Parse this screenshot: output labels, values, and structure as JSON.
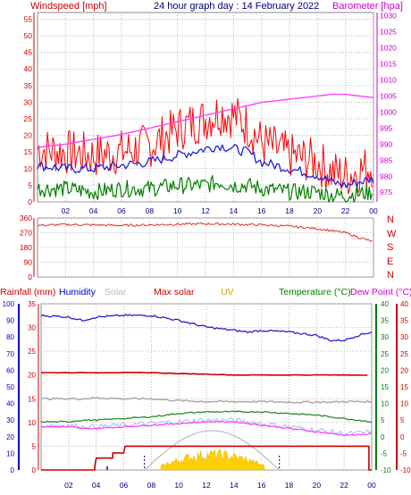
{
  "header": {
    "left_label": "Windspeed [mph]",
    "title": "24 hour graph day : 14 February 2022",
    "right_label": "Barometer [hpa]"
  },
  "wind_dir_labels": [
    "N",
    "W",
    "S",
    "E",
    "N"
  ],
  "bottom_header": {
    "rainfall": "Rainfall (mm)",
    "humidity": "Humidity",
    "solar": "Solar",
    "max_solar": "Max solar",
    "uv": "UV",
    "temperature": "Temperature (°C)",
    "dewpoint": "Dew Point (°C)"
  },
  "colors": {
    "wind_gust": "#ff0000",
    "wind_avg": "#2020e0",
    "wind_low": "#008000",
    "barometer": "#ff40ff",
    "wind_dir": "#e03030",
    "rainfall": "#cc0000",
    "humidity": "#2020d0",
    "solar": "#aaaaaa",
    "max_solar": "#cc0000",
    "uv": "#ffd000",
    "temperature": "#2a8a2a",
    "dewpoint": "#ff40ff",
    "grid": "#bbbbbb"
  },
  "chart_data": [
    {
      "type": "line",
      "x": [
        0,
        2,
        4,
        6,
        8,
        10,
        12,
        13,
        14,
        15,
        16,
        18,
        20,
        21,
        22,
        24
      ],
      "xticks": [
        "02",
        "04",
        "06",
        "08",
        "10",
        "12",
        "14",
        "16",
        "18",
        "20",
        "22",
        "00"
      ],
      "ylim": [
        0,
        57
      ],
      "yticks": [
        0,
        5,
        10,
        15,
        20,
        25,
        30,
        35,
        40,
        45,
        50,
        55
      ],
      "y2lim": [
        972,
        1031
      ],
      "y2ticks": [
        975,
        980,
        985,
        990,
        995,
        1000,
        1005,
        1010,
        1015,
        1020,
        1025,
        1030
      ],
      "series": [
        {
          "key": "wind_gust",
          "values": [
            16,
            15,
            14,
            15,
            17,
            22,
            25,
            27,
            26,
            23,
            18,
            14,
            12,
            9,
            8,
            11
          ]
        },
        {
          "key": "wind_avg",
          "values": [
            11,
            10,
            10,
            11,
            12,
            14,
            16,
            17,
            16,
            15,
            12,
            10,
            8,
            6,
            5,
            7
          ]
        },
        {
          "key": "wind_low",
          "values": [
            4,
            4,
            3,
            4,
            4,
            5,
            5,
            6,
            5,
            5,
            4,
            3,
            3,
            2,
            2,
            3
          ]
        },
        {
          "key": "barometer",
          "axis": "y2",
          "values": [
            989,
            990,
            991.5,
            993,
            995,
            997,
            999,
            1000,
            1001,
            1002,
            1003,
            1004,
            1005,
            1005.5,
            1005.5,
            1004.5
          ]
        }
      ]
    },
    {
      "type": "line",
      "x": [
        0,
        2,
        4,
        6,
        8,
        10,
        12,
        14,
        16,
        18,
        20,
        22,
        23,
        24
      ],
      "ylim": [
        0,
        360
      ],
      "yticks": [
        0,
        90,
        180,
        270,
        360
      ],
      "series": [
        {
          "key": "wind_dir",
          "values": [
            315,
            320,
            318,
            315,
            318,
            322,
            325,
            322,
            318,
            310,
            295,
            270,
            240,
            215
          ]
        }
      ]
    },
    {
      "type": "line",
      "x": [
        0,
        2,
        3,
        4,
        6,
        8,
        10,
        12,
        14,
        15,
        16,
        18,
        20,
        21,
        22,
        23,
        24
      ],
      "axes": {
        "rain": {
          "lim": [
            0,
            35
          ],
          "ticks": [
            0,
            5,
            10,
            15,
            20,
            25,
            30,
            35
          ]
        },
        "humidity": {
          "lim": [
            0,
            100
          ],
          "ticks": [
            0,
            10,
            20,
            30,
            40,
            50,
            60,
            70,
            80,
            90,
            100
          ]
        },
        "temp": {
          "lim": [
            -10,
            40
          ],
          "ticks": [
            -10,
            -5,
            0,
            5,
            10,
            15,
            20,
            25,
            30,
            35,
            40
          ]
        }
      },
      "series": [
        {
          "key": "humidity",
          "axis": "humidity",
          "values": [
            93,
            92,
            90,
            92,
            93,
            93,
            90,
            86,
            84,
            83,
            84,
            83,
            81,
            78,
            78,
            81,
            83
          ]
        },
        {
          "key": "max_solar",
          "axis": "rain",
          "values": [
            20.5,
            20.5,
            20.5,
            20.5,
            20.5,
            20.5,
            20.3,
            20.2,
            20.0,
            20.0,
            20.0,
            20.0,
            20.0,
            20.0,
            20.0,
            20.0,
            20.0
          ]
        },
        {
          "key": "solar",
          "axis": "rain",
          "values": [
            15,
            15,
            15,
            15.2,
            15,
            15,
            14.6,
            14.4,
            14.4,
            14.4,
            14.4,
            14.3,
            14.3,
            14.3,
            14.4,
            14.4,
            14.4
          ]
        },
        {
          "key": "temperature",
          "axis": "temp",
          "values": [
            4.5,
            4.5,
            5,
            5,
            5.5,
            6,
            7,
            7.5,
            7.5,
            7.5,
            7.5,
            7,
            6.5,
            6,
            5.5,
            5,
            4.5
          ]
        },
        {
          "key": "dewpoint",
          "axis": "temp",
          "values": [
            3,
            3,
            2.5,
            2.5,
            3,
            3.5,
            4,
            4.5,
            4.5,
            4,
            3.5,
            2.5,
            1.5,
            1,
            0.5,
            0.5,
            1
          ]
        },
        {
          "key": "rainfall",
          "axis": "rain",
          "values": [
            0,
            0,
            0,
            0.8,
            5,
            5,
            5,
            5,
            5,
            5,
            5,
            5,
            5,
            5,
            5,
            5,
            0
          ]
        }
      ]
    }
  ]
}
